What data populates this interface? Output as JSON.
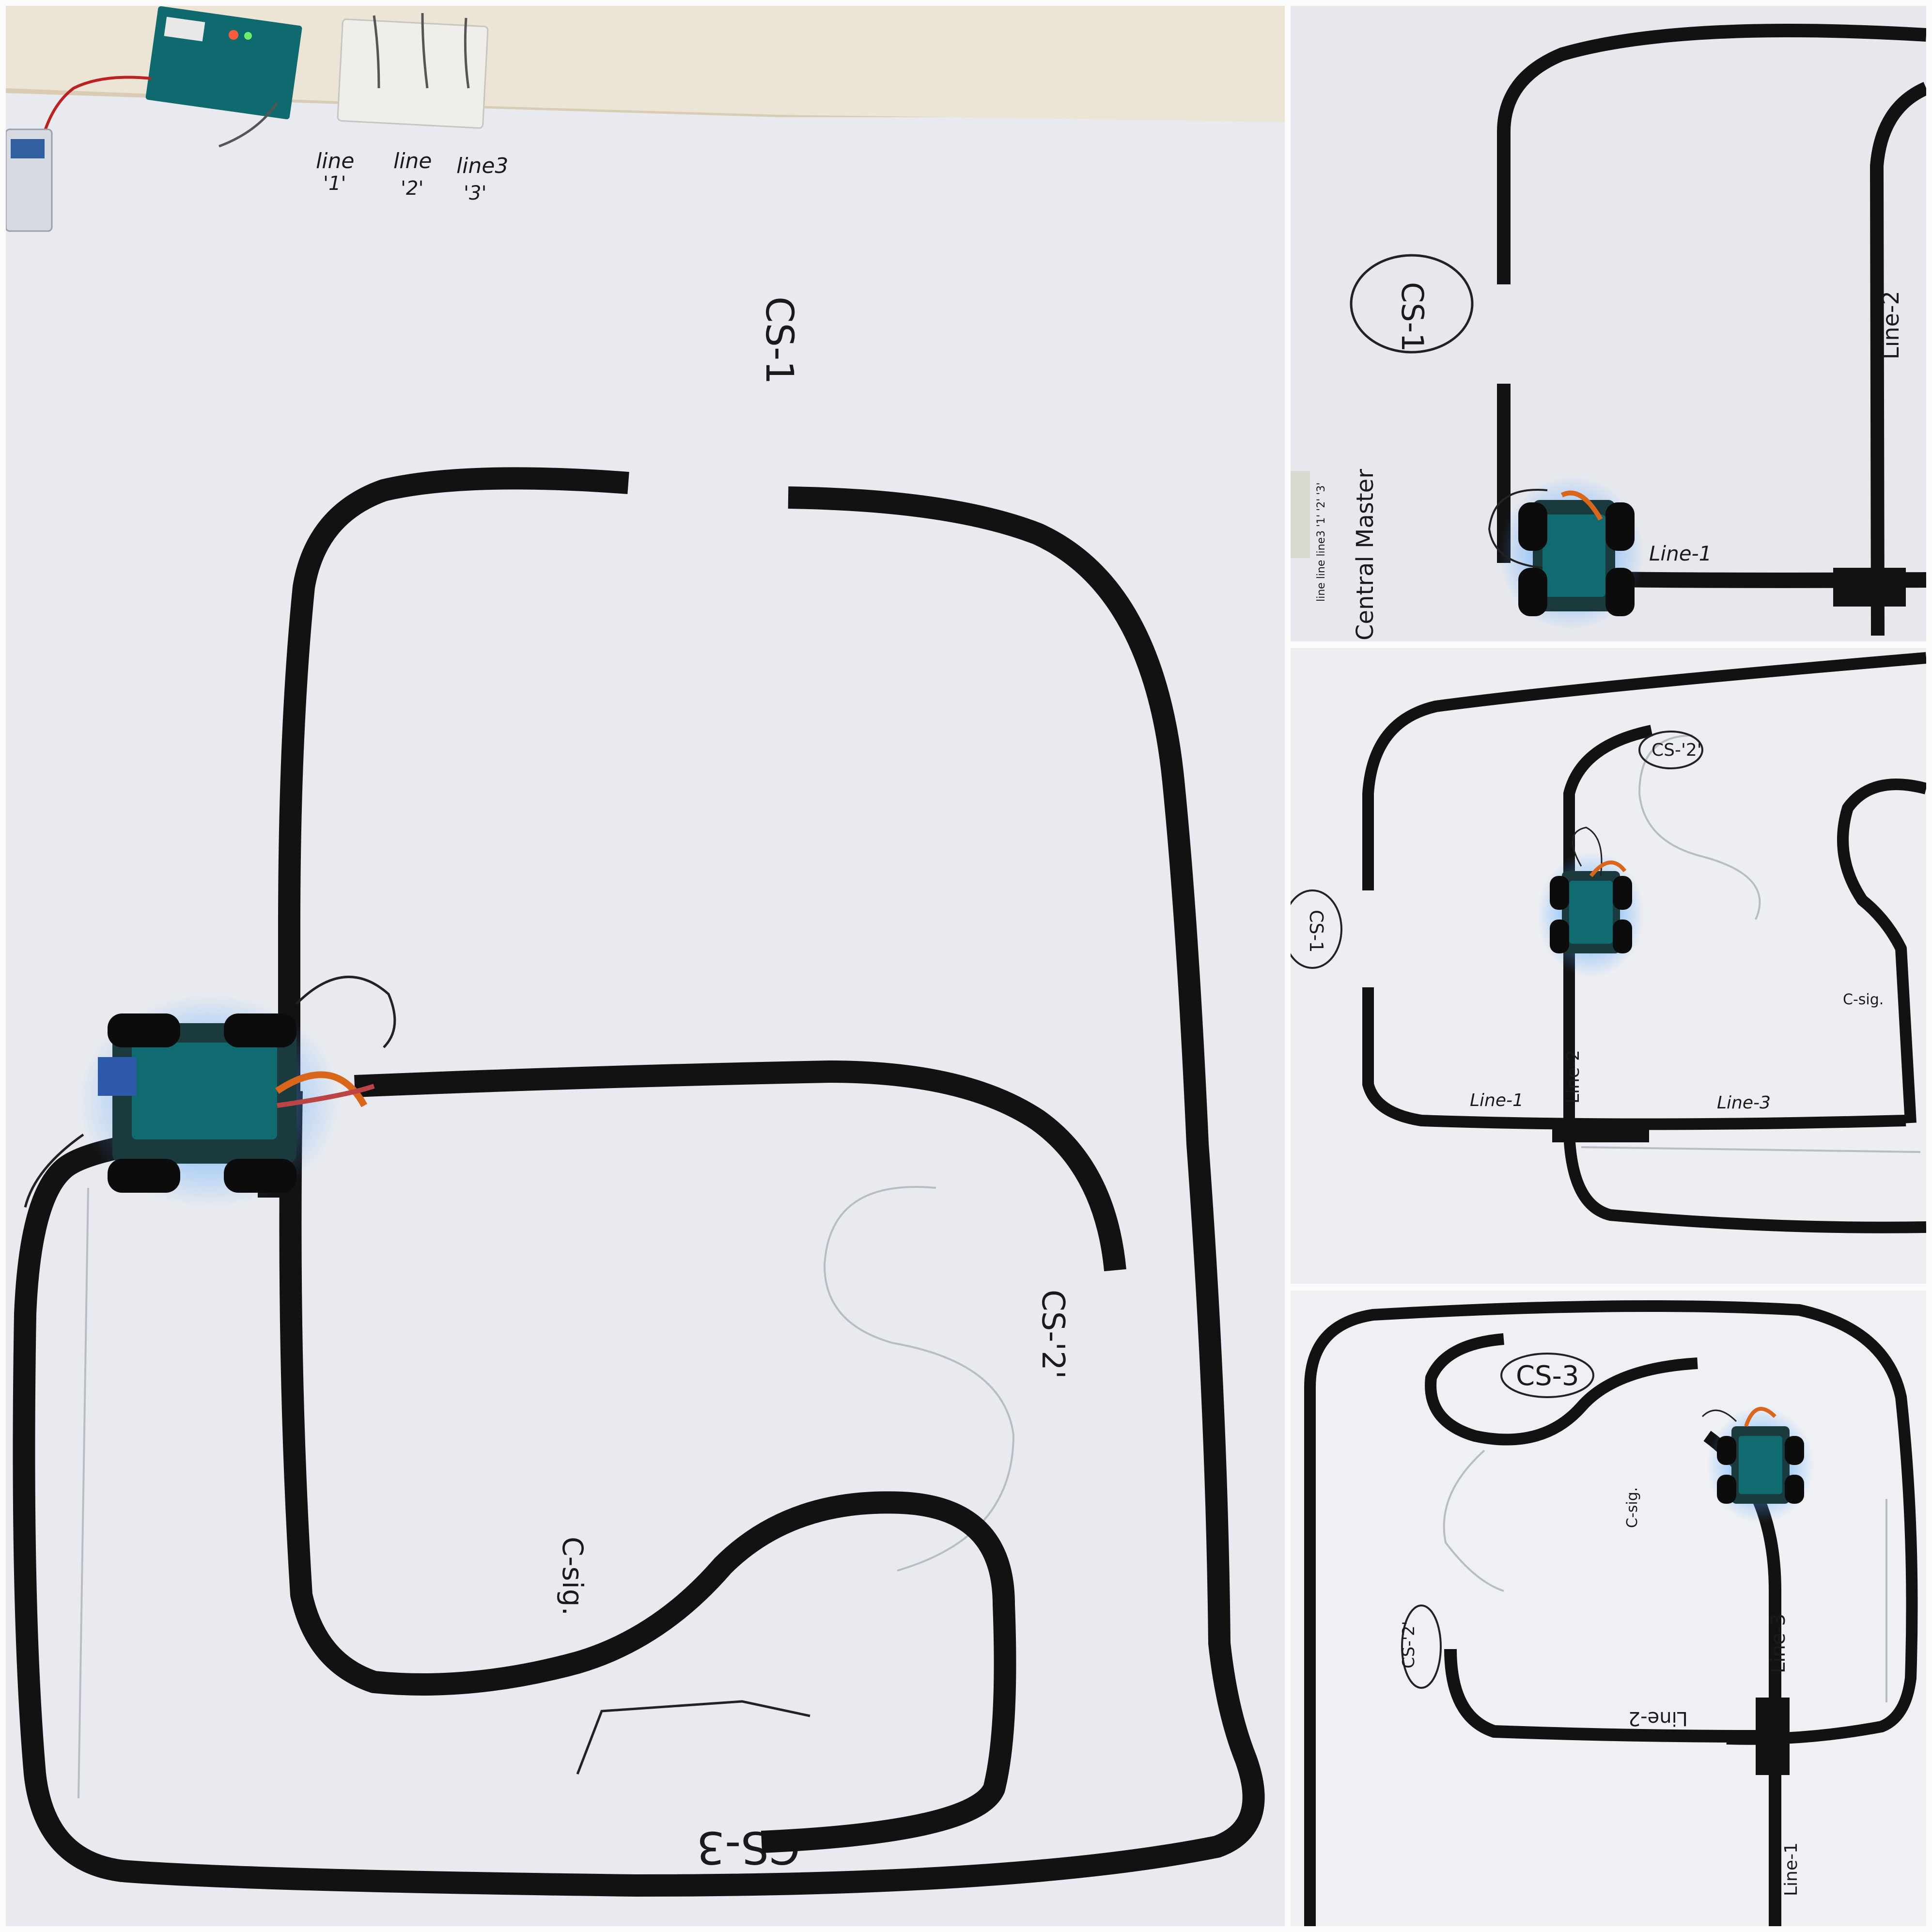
{
  "main": {
    "header_labels": [
      {
        "top": "line",
        "bottom": "'1'"
      },
      {
        "top": "line",
        "bottom": "'2'"
      },
      {
        "top": "line3",
        "bottom": "'3'"
      }
    ],
    "cs1": "CS-1",
    "cs2": "CS-'2'",
    "cs3": "CS-3",
    "csig": "C-sig."
  },
  "top_right": {
    "cs1": "CS-1",
    "line2": "Line-2",
    "line1": "Line-1",
    "master": "Central Master",
    "header_labels": "line line line3 '1' '2' '3'"
  },
  "mid_right": {
    "cs2": "CS-'2'",
    "cs1": "CS-1",
    "line2": "Line-2",
    "line1": "Line-1",
    "line3": "Line-3",
    "csig": "C-sig."
  },
  "bottom_right": {
    "cs3": "CS-3",
    "cs2": "CS-'2'",
    "csig": "C-sig.",
    "line3": "Line-3",
    "line2": "Line-2",
    "line1": "Line-1"
  },
  "colors": {
    "paper": "#e8eaef",
    "tape": "#121212",
    "led": "#2f7dff",
    "arduino": "#0f6b6f"
  }
}
